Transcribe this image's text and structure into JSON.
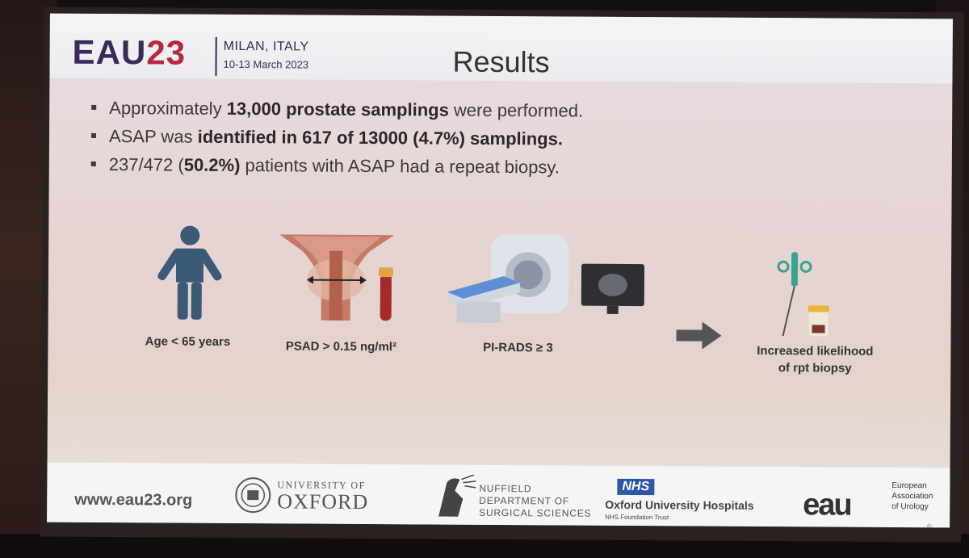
{
  "header": {
    "brand_prefix": "EAU",
    "brand_number": "23",
    "city": "MILAN, ITALY",
    "dates": "10-13 March 2023",
    "title": "Results"
  },
  "bullets": [
    {
      "pre": "Approximately ",
      "bold": "13,000 prostate samplings",
      "post": " were performed."
    },
    {
      "pre": "ASAP was ",
      "bold": "identified in 617 of 13000 (4.7%) samplings.",
      "post": ""
    },
    {
      "pre": "237/472 (",
      "bold": "50.2%)",
      "post": " patients with ASAP had a repeat biopsy."
    }
  ],
  "factors": [
    {
      "label": "Age < 65 years",
      "icon": "person-icon"
    },
    {
      "label": "PSAD > 0.15 ng/ml²",
      "icon": "prostate-icon"
    },
    {
      "label": "PI-RADS ≥ 3",
      "icon": "mri-scanner-icon"
    }
  ],
  "outcome": {
    "line1": "Increased likelihood",
    "line2": "of rpt biopsy",
    "icon": "biopsy-needle-icon"
  },
  "footer": {
    "url": "www.eau23.org",
    "oxford_top": "UNIVERSITY OF",
    "oxford_name": "OXFORD",
    "nuffield_1": "NUFFIELD",
    "nuffield_2": "DEPARTMENT OF",
    "nuffield_3": "SURGICAL SCIENCES",
    "nhs": "NHS",
    "nhs_name": "Oxford University Hospitals",
    "nhs_trust": "NHS Foundation Trust",
    "eau_mark": "eau",
    "eau_1": "European",
    "eau_2": "Association",
    "eau_3": "of Urology",
    "copyright": "©"
  },
  "colors": {
    "brand": "#3a2a5a",
    "brand_accent": "#b7283e",
    "person": "#3b5a78",
    "prostate": "#b3604d",
    "nhs_blue": "#2b57a6"
  }
}
